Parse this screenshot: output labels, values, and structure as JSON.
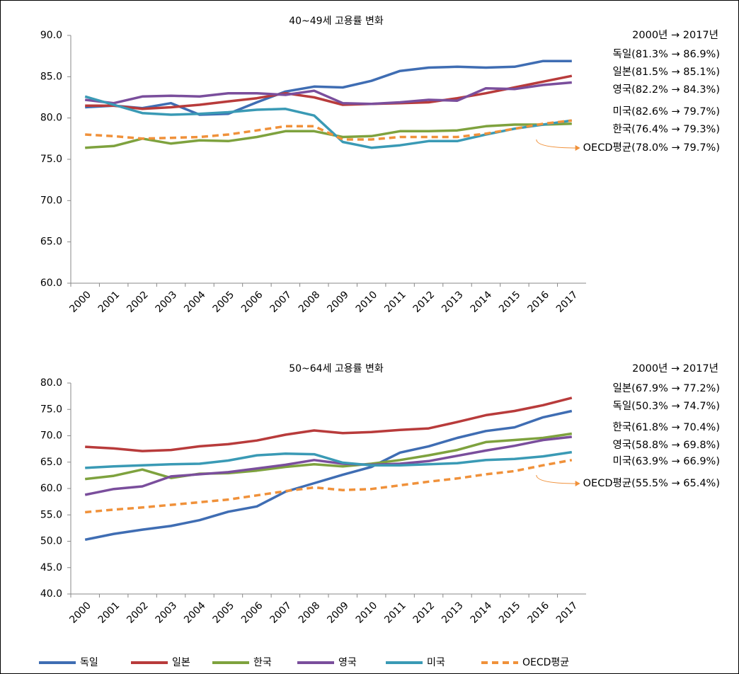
{
  "chart_data": [
    {
      "type": "line",
      "title": "40~49세  고용률  변화",
      "categories": [
        "2000",
        "2001",
        "2002",
        "2003",
        "2004",
        "2005",
        "2006",
        "2007",
        "2008",
        "2009",
        "2010",
        "2011",
        "2012",
        "2013",
        "2014",
        "2015",
        "2016",
        "2017"
      ],
      "ylim": [
        60,
        90
      ],
      "yticks": [
        {
          "value": 60,
          "label": "60.0"
        },
        {
          "value": 65,
          "label": "65.0"
        },
        {
          "value": 70,
          "label": "70.0"
        },
        {
          "value": 75,
          "label": "75.0"
        },
        {
          "value": 80,
          "label": "80.0"
        },
        {
          "value": 85,
          "label": "85.0"
        },
        {
          "value": 90,
          "label": "90.0"
        }
      ],
      "series": [
        {
          "color": "#3f6db3",
          "values": [
            81.3,
            81.5,
            81.2,
            81.8,
            80.4,
            80.5,
            81.9,
            83.2,
            83.8,
            83.7,
            84.5,
            85.7,
            86.1,
            86.2,
            86.1,
            86.2,
            86.9,
            86.9
          ]
        },
        {
          "color": "#b83b3b",
          "values": [
            81.5,
            81.5,
            81.1,
            81.3,
            81.6,
            82.0,
            82.4,
            83.0,
            82.5,
            81.6,
            81.7,
            81.8,
            81.9,
            82.4,
            83.0,
            83.7,
            84.4,
            85.1
          ]
        },
        {
          "color": "#7ea23e",
          "values": [
            76.4,
            76.6,
            77.5,
            76.9,
            77.3,
            77.2,
            77.7,
            78.4,
            78.4,
            77.7,
            77.8,
            78.4,
            78.4,
            78.5,
            79.0,
            79.2,
            79.2,
            79.3
          ]
        },
        {
          "color": "#7a4e9c",
          "values": [
            82.2,
            81.8,
            82.6,
            82.7,
            82.6,
            83.0,
            83.0,
            82.8,
            83.3,
            81.8,
            81.7,
            81.9,
            82.2,
            82.1,
            83.6,
            83.5,
            84.0,
            84.3
          ]
        },
        {
          "color": "#3a9ab5",
          "values": [
            82.6,
            81.6,
            80.6,
            80.4,
            80.5,
            80.7,
            81.0,
            81.1,
            80.3,
            77.1,
            76.4,
            76.7,
            77.2,
            77.2,
            78.0,
            78.7,
            79.2,
            79.7
          ]
        },
        {
          "color": "#f0913a",
          "dashed": true,
          "values": [
            78.0,
            77.8,
            77.5,
            77.6,
            77.7,
            78.0,
            78.5,
            79.0,
            79.0,
            77.4,
            77.4,
            77.7,
            77.7,
            77.7,
            78.1,
            78.7,
            79.3,
            79.7
          ]
        }
      ],
      "note": "2000년 → 2017년",
      "annotations": [
        {
          "text": "독일(81.3% → 86.9%)",
          "color": "#2e78c8"
        },
        {
          "text": "일본(81.5% → 85.1%)",
          "color": "#c00000"
        },
        {
          "text": "영국(82.2% → 84.3%)",
          "color": "#7a4e9c"
        },
        {
          "text": "미국(82.6% → 79.7%)",
          "color": "#3aa8c8"
        },
        {
          "text": "한국(76.4% → 79.3%)",
          "color": "#6f9a32"
        },
        {
          "text": "OECD평균(78.0% → 79.7%)",
          "color": "#f0913a"
        }
      ]
    },
    {
      "type": "line",
      "title": "50~64세  고용률  변화",
      "categories": [
        "2000",
        "2001",
        "2002",
        "2003",
        "2004",
        "2005",
        "2006",
        "2007",
        "2008",
        "2009",
        "2010",
        "2011",
        "2012",
        "2013",
        "2014",
        "2015",
        "2016",
        "2017"
      ],
      "ylim": [
        40,
        80
      ],
      "yticks": [
        {
          "value": 40,
          "label": "40.0"
        },
        {
          "value": 45,
          "label": "45.0"
        },
        {
          "value": 50,
          "label": "50.0"
        },
        {
          "value": 55,
          "label": "55.0"
        },
        {
          "value": 60,
          "label": "60.0"
        },
        {
          "value": 65,
          "label": "65.0"
        },
        {
          "value": 70,
          "label": "70.0"
        },
        {
          "value": 75,
          "label": "75.0"
        },
        {
          "value": 80,
          "label": "80.0"
        }
      ],
      "series": [
        {
          "name": "독일",
          "color": "#3f6db3",
          "values": [
            50.3,
            51.4,
            52.2,
            52.9,
            54.0,
            55.6,
            56.6,
            59.4,
            61.0,
            62.6,
            64.1,
            66.8,
            68.0,
            69.6,
            70.9,
            71.6,
            73.5,
            74.7
          ]
        },
        {
          "name": "일본",
          "color": "#b83b3b",
          "values": [
            67.9,
            67.6,
            67.1,
            67.3,
            68.0,
            68.4,
            69.1,
            70.2,
            71.0,
            70.5,
            70.7,
            71.1,
            71.4,
            72.6,
            73.9,
            74.7,
            75.8,
            77.2
          ]
        },
        {
          "name": "한국",
          "color": "#7ea23e",
          "values": [
            61.8,
            62.4,
            63.6,
            62.0,
            62.8,
            62.9,
            63.4,
            64.1,
            64.6,
            64.2,
            64.7,
            65.4,
            66.3,
            67.3,
            68.8,
            69.2,
            69.6,
            70.4
          ]
        },
        {
          "name": "영국",
          "color": "#7a4e9c",
          "values": [
            58.8,
            59.9,
            60.4,
            62.3,
            62.7,
            63.1,
            63.8,
            64.5,
            65.4,
            64.7,
            64.5,
            64.7,
            65.2,
            66.2,
            67.2,
            68.1,
            69.2,
            69.8
          ]
        },
        {
          "name": "미국",
          "color": "#3a9ab5",
          "values": [
            63.9,
            64.2,
            64.4,
            64.6,
            64.7,
            65.3,
            66.3,
            66.6,
            66.5,
            64.9,
            64.4,
            64.4,
            64.6,
            64.8,
            65.4,
            65.6,
            66.1,
            66.9
          ]
        },
        {
          "name": "OECD평균",
          "color": "#f0913a",
          "dashed": true,
          "values": [
            55.5,
            56.0,
            56.4,
            56.9,
            57.4,
            57.9,
            58.7,
            59.5,
            60.2,
            59.7,
            59.9,
            60.6,
            61.3,
            61.9,
            62.7,
            63.3,
            64.4,
            65.4
          ]
        }
      ],
      "note": "2000년 → 2017년",
      "annotations": [
        {
          "text": "일본(67.9% → 77.2%)",
          "color": "#c00000"
        },
        {
          "text": "독일(50.3% → 74.7%)",
          "color": "#2e78c8"
        },
        {
          "text": "한국(61.8% → 70.4%)",
          "color": "#6f9a32"
        },
        {
          "text": "영국(58.8% → 69.8%)",
          "color": "#7a4e9c"
        },
        {
          "text": "미국(63.9% → 66.9%)",
          "color": "#3aa8c8"
        },
        {
          "text": "OECD평균(55.5% → 65.4%)",
          "color": "#f0913a"
        }
      ]
    }
  ]
}
